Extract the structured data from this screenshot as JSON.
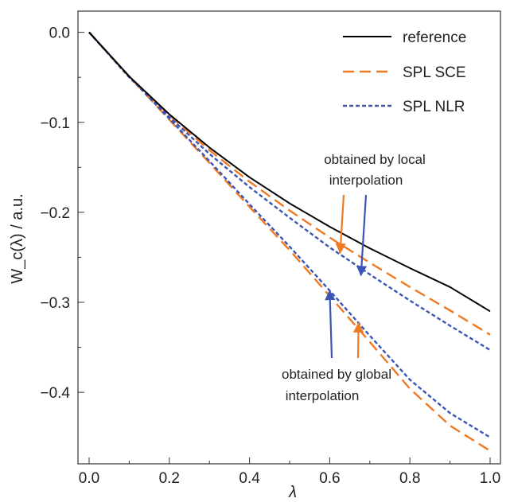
{
  "chart_data": {
    "type": "line",
    "xlabel": "λ",
    "ylabel": "W_c(λ) / a.u.",
    "xlim": [
      0.0,
      1.0
    ],
    "ylim": [
      -0.475,
      0.02
    ],
    "xticks": [
      "0.0",
      "0.2",
      "0.4",
      "0.6",
      "0.8",
      "1.0"
    ],
    "yticks": [
      "0.0",
      "−0.1",
      "−0.2",
      "−0.3",
      "−0.4"
    ],
    "legend_position": "top-right",
    "legend": [
      "reference",
      "SPL SCE",
      "SPL NLR"
    ],
    "colors": {
      "reference": "#000000",
      "sce": "#f07a22",
      "nlr": "#3b55b5"
    },
    "x": [
      0.0,
      0.1,
      0.2,
      0.3,
      0.4,
      0.5,
      0.6,
      0.7,
      0.8,
      0.9,
      1.0
    ],
    "series": [
      {
        "name": "reference",
        "style": "solid",
        "color": "#000000",
        "values": [
          0.0,
          -0.049,
          -0.091,
          -0.128,
          -0.161,
          -0.19,
          -0.216,
          -0.24,
          -0.262,
          -0.283,
          -0.31
        ]
      },
      {
        "group": "local",
        "legend_index": 1,
        "style": "dashed",
        "color": "#f07a22",
        "values": [
          0.0,
          -0.049,
          -0.092,
          -0.131,
          -0.166,
          -0.198,
          -0.228,
          -0.256,
          -0.283,
          -0.309,
          -0.336
        ]
      },
      {
        "group": "local",
        "legend_index": 2,
        "style": "dotted",
        "color": "#3b55b5",
        "values": [
          0.0,
          -0.05,
          -0.094,
          -0.135,
          -0.172,
          -0.206,
          -0.239,
          -0.269,
          -0.298,
          -0.326,
          -0.353
        ]
      },
      {
        "group": "global",
        "legend_index": 1,
        "style": "dashed",
        "color": "#f07a22",
        "values": [
          0.0,
          -0.049,
          -0.097,
          -0.145,
          -0.194,
          -0.242,
          -0.293,
          -0.344,
          -0.396,
          -0.437,
          -0.465
        ]
      },
      {
        "group": "global",
        "legend_index": 2,
        "style": "dotted",
        "color": "#3b55b5",
        "values": [
          0.0,
          -0.049,
          -0.096,
          -0.143,
          -0.191,
          -0.238,
          -0.287,
          -0.337,
          -0.386,
          -0.423,
          -0.45
        ]
      }
    ],
    "annotations": [
      {
        "lines": [
          "obtained by local",
          "interpolation"
        ],
        "arrows": [
          {
            "color": "#f07a22",
            "point": [
              0.626,
              -0.245
            ]
          },
          {
            "color": "#3b55b5",
            "point": [
              0.678,
              -0.27
            ]
          }
        ]
      },
      {
        "lines": [
          "obtained by global",
          "interpolation"
        ],
        "arrows": [
          {
            "color": "#3b55b5",
            "point": [
              0.6,
              -0.287
            ]
          },
          {
            "color": "#f07a22",
            "point": [
              0.672,
              -0.323
            ]
          }
        ]
      }
    ]
  }
}
